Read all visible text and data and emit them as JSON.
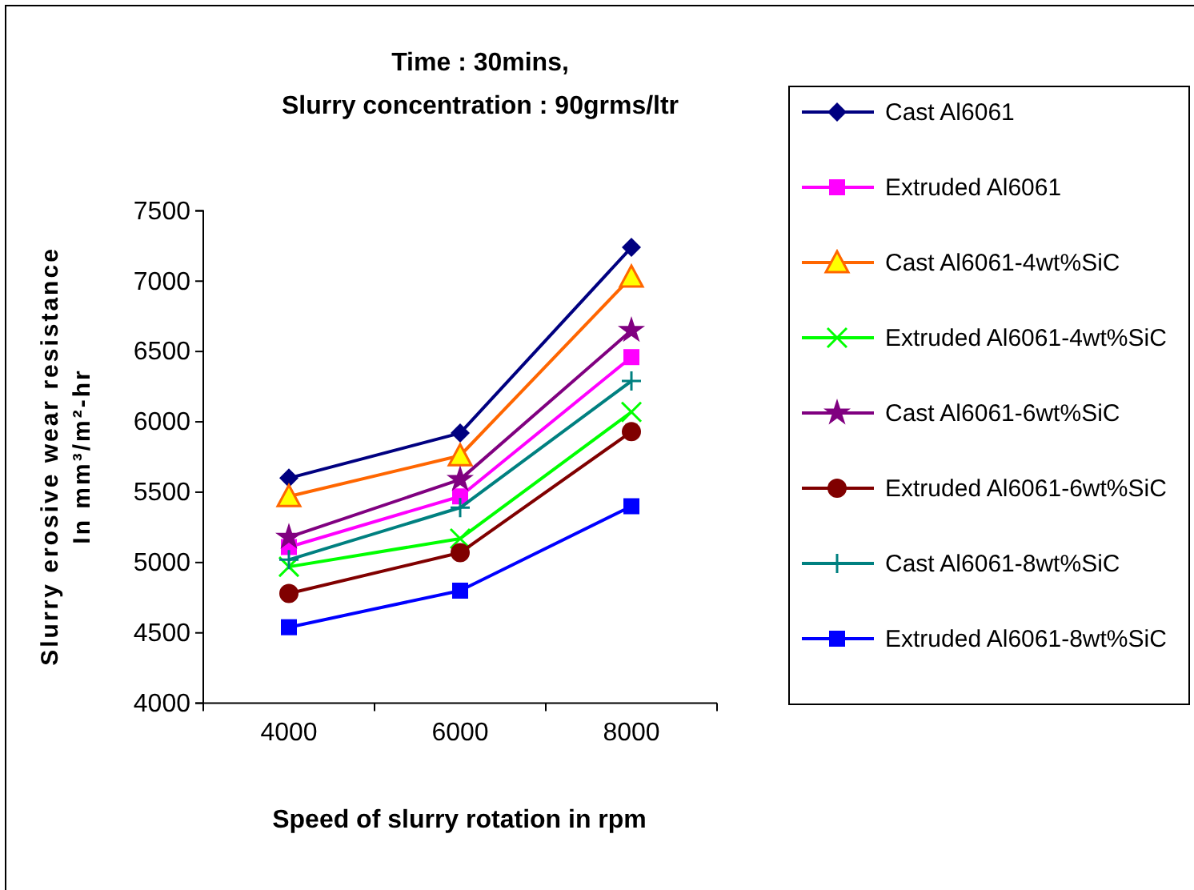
{
  "chart_data": {
    "type": "line",
    "title": "Time : 30mins,\nSlurry concentration : 90grms/ltr",
    "xlabel": "Speed of slurry rotation in rpm",
    "ylabel": "Slurry erosive wear resistance\nIn mm³/m²-hr",
    "categories": [
      "4000",
      "6000",
      "8000"
    ],
    "ylim": [
      4000,
      7500
    ],
    "yticks": [
      4000,
      4500,
      5000,
      5500,
      6000,
      6500,
      7000,
      7500
    ],
    "grid": false,
    "legend": "right",
    "series": [
      {
        "name": "Cast Al6061",
        "color": "#000080",
        "marker": "diamond",
        "values": [
          5600,
          5920,
          7240
        ]
      },
      {
        "name": "Extruded Al6061",
        "color": "#ff00ff",
        "marker": "square",
        "values": [
          5110,
          5470,
          6460
        ]
      },
      {
        "name": "Cast Al6061-4wt%SiC",
        "color": "#ff6600",
        "marker": "triangle",
        "values": [
          5470,
          5760,
          7030
        ]
      },
      {
        "name": "Extruded Al6061-4wt%SiC",
        "color": "#00ff00",
        "marker": "cross",
        "values": [
          4970,
          5170,
          6070
        ]
      },
      {
        "name": "Cast Al6061-6wt%SiC",
        "color": "#800080",
        "marker": "star",
        "values": [
          5180,
          5590,
          6650
        ]
      },
      {
        "name": "Extruded Al6061-6wt%SiC",
        "color": "#800000",
        "marker": "circle",
        "values": [
          4780,
          5070,
          5930
        ]
      },
      {
        "name": "Cast Al6061-8wt%SiC",
        "color": "#008080",
        "marker": "plus",
        "values": [
          5020,
          5390,
          6290
        ]
      },
      {
        "name": "Extruded Al6061-8wt%SiC",
        "color": "#0000ff",
        "marker": "square",
        "values": [
          4540,
          4800,
          5400
        ]
      }
    ]
  }
}
